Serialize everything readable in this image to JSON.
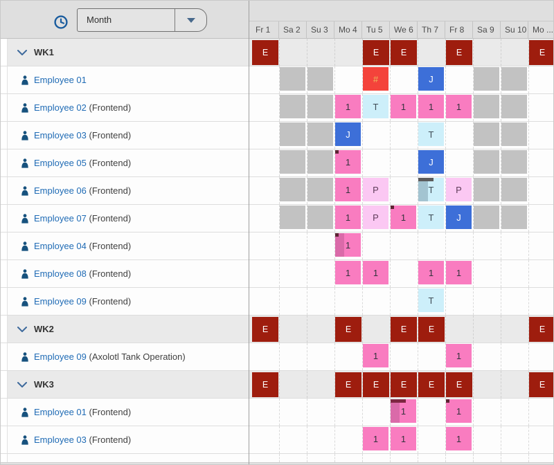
{
  "toolbar": {
    "view_mode": "Month"
  },
  "grid": {
    "columns": [
      {
        "label": "Fr 1"
      },
      {
        "label": "Sa 2"
      },
      {
        "label": "Su 3"
      },
      {
        "label": "Mo 4"
      },
      {
        "label": "Tu 5"
      },
      {
        "label": "We 6"
      },
      {
        "label": "Th 7"
      },
      {
        "label": "Fr 8"
      },
      {
        "label": "Sa 9"
      },
      {
        "label": "Su 10"
      },
      {
        "label": "Mo ..."
      }
    ],
    "weekend_columns": [
      1,
      2,
      8,
      9
    ],
    "rows": [
      {
        "kind": "group",
        "label": "WK1",
        "events": [
          {
            "c": 0,
            "t": "E"
          },
          {
            "c": 4,
            "t": "E"
          },
          {
            "c": 5,
            "t": "E"
          },
          {
            "c": 7,
            "t": "E"
          },
          {
            "c": 10,
            "t": "E"
          }
        ]
      },
      {
        "kind": "emp",
        "name": "Employee 01",
        "role": "",
        "shadeWeekends": true,
        "events": [
          {
            "c": 4,
            "t": "hash"
          },
          {
            "c": 6,
            "t": "J"
          }
        ]
      },
      {
        "kind": "emp",
        "name": "Employee 02",
        "role": "(Frontend)",
        "shadeWeekends": true,
        "events": [
          {
            "c": 3,
            "t": "one"
          },
          {
            "c": 4,
            "t": "T"
          },
          {
            "c": 5,
            "t": "one"
          },
          {
            "c": 6,
            "t": "one"
          },
          {
            "c": 7,
            "t": "one"
          }
        ]
      },
      {
        "kind": "emp",
        "name": "Employee 03",
        "role": "(Frontend)",
        "shadeWeekends": true,
        "events": [
          {
            "c": 3,
            "t": "J"
          },
          {
            "c": 6,
            "t": "T"
          }
        ]
      },
      {
        "kind": "emp",
        "name": "Employee 05",
        "role": "(Frontend)",
        "shadeWeekends": true,
        "events": [
          {
            "c": 3,
            "t": "one",
            "corner": true
          },
          {
            "c": 6,
            "t": "J"
          }
        ]
      },
      {
        "kind": "emp",
        "name": "Employee 06",
        "role": "(Frontend)",
        "shadeWeekends": true,
        "events": [
          {
            "c": 3,
            "t": "one"
          },
          {
            "c": 4,
            "t": "P"
          },
          {
            "c": 6,
            "t": "T",
            "bar": "gray",
            "dotStrip": true
          },
          {
            "c": 7,
            "t": "P"
          }
        ]
      },
      {
        "kind": "emp",
        "name": "Employee 07",
        "role": "(Frontend)",
        "shadeWeekends": true,
        "events": [
          {
            "c": 3,
            "t": "one"
          },
          {
            "c": 4,
            "t": "P"
          },
          {
            "c": 5,
            "t": "one",
            "corner": true
          },
          {
            "c": 6,
            "t": "T"
          },
          {
            "c": 7,
            "t": "J"
          }
        ]
      },
      {
        "kind": "emp",
        "name": "Employee 04",
        "role": "(Frontend)",
        "shadeWeekends": false,
        "events": [
          {
            "c": 3,
            "t": "one",
            "corner": true,
            "strip": true
          }
        ]
      },
      {
        "kind": "emp",
        "name": "Employee 08",
        "role": "(Frontend)",
        "shadeWeekends": false,
        "events": [
          {
            "c": 3,
            "t": "one"
          },
          {
            "c": 4,
            "t": "one"
          },
          {
            "c": 6,
            "t": "one"
          },
          {
            "c": 7,
            "t": "one"
          }
        ]
      },
      {
        "kind": "emp",
        "name": "Employee 09",
        "role": "(Frontend)",
        "shadeWeekends": false,
        "events": [
          {
            "c": 6,
            "t": "T"
          }
        ]
      },
      {
        "kind": "group",
        "label": "WK2",
        "events": [
          {
            "c": 0,
            "t": "E"
          },
          {
            "c": 3,
            "t": "E"
          },
          {
            "c": 5,
            "t": "E"
          },
          {
            "c": 6,
            "t": "E"
          },
          {
            "c": 10,
            "t": "E"
          }
        ]
      },
      {
        "kind": "emp",
        "name": "Employee 09",
        "role": "(Axolotl Tank Operation)",
        "shadeWeekends": false,
        "events": [
          {
            "c": 4,
            "t": "one"
          },
          {
            "c": 7,
            "t": "one"
          }
        ]
      },
      {
        "kind": "group",
        "label": "WK3",
        "events": [
          {
            "c": 0,
            "t": "E"
          },
          {
            "c": 3,
            "t": "E"
          },
          {
            "c": 4,
            "t": "E"
          },
          {
            "c": 5,
            "t": "E"
          },
          {
            "c": 6,
            "t": "E"
          },
          {
            "c": 7,
            "t": "E"
          },
          {
            "c": 10,
            "t": "E"
          }
        ]
      },
      {
        "kind": "emp",
        "name": "Employee 01",
        "role": "(Frontend)",
        "shadeWeekends": false,
        "events": [
          {
            "c": 5,
            "t": "one",
            "bar": "maroon",
            "strip": true
          },
          {
            "c": 7,
            "t": "one",
            "corner": true
          }
        ]
      },
      {
        "kind": "emp",
        "name": "Employee 03",
        "role": "(Frontend)",
        "shadeWeekends": false,
        "events": [
          {
            "c": 4,
            "t": "one"
          },
          {
            "c": 5,
            "t": "one"
          },
          {
            "c": 7,
            "t": "one"
          }
        ]
      }
    ]
  },
  "legend": {
    "E": {
      "label": "E",
      "color": "#9E1D0E",
      "text_color": "#FFFFFF"
    },
    "hash": {
      "label": "#",
      "color": "#F4433B",
      "text_color": "#EDB85C"
    },
    "J": {
      "label": "J",
      "color": "#3D6FD8",
      "text_color": "#FFFFFF"
    },
    "T": {
      "label": "T",
      "color": "#CDEFFA",
      "text_color": "#3E4B55"
    },
    "P": {
      "label": "P",
      "color": "#FBC8F3",
      "text_color": "#5E3B58"
    },
    "one": {
      "label": "1",
      "color": "#F97CC0",
      "text_color": "#32333B"
    },
    "weekend": {
      "label": "",
      "color": "#C2C2C2",
      "text_color": ""
    }
  },
  "decorations": {
    "corner_mark": "#5E2433",
    "left_strip": "rgba(109,46,88,0.22)",
    "top_bar_maroon": "#7E2742",
    "top_bar_gray": "#5C5C5C",
    "dot_strip": "rgba(104,136,152,0.42)"
  }
}
